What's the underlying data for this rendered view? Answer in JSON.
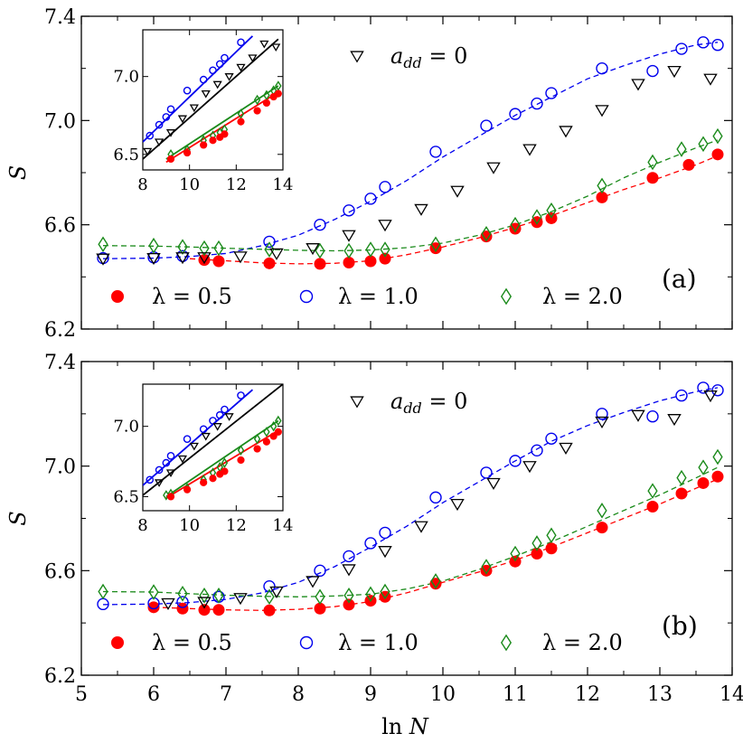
{
  "chart_data": [
    {
      "type": "scatter",
      "panel_label": "(a)",
      "ylabel": "S",
      "xlabel": "",
      "xlim": [
        5,
        14
      ],
      "ylim": [
        6.2,
        7.4
      ],
      "yticks": [
        6.2,
        6.6,
        7.0,
        7.4
      ],
      "ytick_labels": [
        "6.2",
        "6.6",
        "7.0",
        "7.4"
      ],
      "xticks": [
        5,
        6,
        7,
        8,
        9,
        10,
        11,
        12,
        13,
        14
      ],
      "xtick_labels": [
        "5",
        "6",
        "7",
        "8",
        "9",
        "10",
        "11",
        "12",
        "13",
        "14"
      ],
      "annotation": "a_dd = 0",
      "series": [
        {
          "name": "λ = 0.5",
          "marker": "filled-circle",
          "color": "#ff0000",
          "x": [
            6.7,
            6.9,
            7.6,
            8.3,
            8.7,
            9.0,
            9.2,
            9.9,
            10.6,
            11.0,
            11.3,
            11.5,
            12.2,
            12.9,
            13.4,
            13.8
          ],
          "y": [
            6.465,
            6.46,
            6.452,
            6.45,
            6.455,
            6.46,
            6.47,
            6.51,
            6.555,
            6.585,
            6.61,
            6.625,
            6.705,
            6.78,
            6.83,
            6.87
          ],
          "fit_x": [
            6.5,
            7.0,
            7.5,
            8.0,
            8.5,
            9.0,
            9.5,
            10.0,
            10.5,
            11.0,
            11.5,
            12.0,
            12.5,
            13.0,
            13.5,
            13.8
          ],
          "fit_y": [
            6.47,
            6.462,
            6.454,
            6.45,
            6.452,
            6.462,
            6.485,
            6.515,
            6.55,
            6.59,
            6.635,
            6.685,
            6.735,
            6.78,
            6.83,
            6.865
          ]
        },
        {
          "name": "λ = 1.0",
          "marker": "open-circle",
          "color": "#0000ee",
          "x": [
            5.3,
            6.0,
            6.4,
            7.6,
            8.3,
            8.7,
            9.0,
            9.2,
            9.9,
            10.6,
            11.0,
            11.3,
            11.5,
            12.2,
            12.9,
            13.3,
            13.6,
            13.8
          ],
          "y": [
            6.472,
            6.475,
            6.48,
            6.535,
            6.6,
            6.655,
            6.7,
            6.745,
            6.88,
            6.98,
            7.025,
            7.065,
            7.105,
            7.2,
            7.19,
            7.275,
            7.3,
            7.29
          ],
          "fit_x": [
            5.3,
            6.0,
            6.5,
            7.0,
            7.5,
            8.0,
            8.5,
            9.0,
            9.5,
            10.0,
            10.5,
            11.0,
            11.5,
            12.0,
            12.5,
            13.0,
            13.5,
            13.8
          ],
          "fit_y": [
            6.47,
            6.472,
            6.478,
            6.49,
            6.52,
            6.56,
            6.62,
            6.69,
            6.77,
            6.86,
            6.94,
            7.02,
            7.09,
            7.16,
            7.21,
            7.255,
            7.29,
            7.3
          ]
        },
        {
          "name": "λ = 2.0",
          "marker": "open-diamond",
          "color": "#1a8a1a",
          "x": [
            5.3,
            6.0,
            6.4,
            6.7,
            6.9,
            7.6,
            8.3,
            8.7,
            9.0,
            9.2,
            9.9,
            10.6,
            11.0,
            11.3,
            11.5,
            12.2,
            12.9,
            13.3,
            13.6,
            13.8
          ],
          "y": [
            6.525,
            6.52,
            6.515,
            6.51,
            6.51,
            6.505,
            6.5,
            6.5,
            6.505,
            6.505,
            6.525,
            6.565,
            6.6,
            6.63,
            6.655,
            6.75,
            6.84,
            6.89,
            6.91,
            6.94
          ],
          "fit_x": [
            5.3,
            6.0,
            6.5,
            7.0,
            7.5,
            8.0,
            8.5,
            9.0,
            9.5,
            10.0,
            10.5,
            11.0,
            11.5,
            12.0,
            12.5,
            13.0,
            13.5,
            13.8
          ],
          "fit_y": [
            6.52,
            6.518,
            6.515,
            6.51,
            6.506,
            6.502,
            6.5,
            6.503,
            6.512,
            6.53,
            6.56,
            6.6,
            6.65,
            6.71,
            6.78,
            6.84,
            6.895,
            6.925
          ]
        },
        {
          "name": "a_dd = 0",
          "marker": "open-triangle-down",
          "color": "#000000",
          "x": [
            5.3,
            6.0,
            6.4,
            6.7,
            7.2,
            7.7,
            8.2,
            8.7,
            9.2,
            9.7,
            10.2,
            10.7,
            11.2,
            11.7,
            12.2,
            12.7,
            13.2,
            13.7
          ],
          "y": [
            6.47,
            6.472,
            6.475,
            6.475,
            6.478,
            6.49,
            6.51,
            6.56,
            6.6,
            6.66,
            6.73,
            6.82,
            6.89,
            6.96,
            7.04,
            7.14,
            7.19,
            7.16
          ]
        }
      ],
      "inset": {
        "xlim": [
          8,
          14
        ],
        "ylim": [
          6.4,
          7.3
        ],
        "xticks": [
          8,
          10,
          12,
          14
        ],
        "xtick_labels": [
          "8",
          "10",
          "12",
          "14"
        ],
        "yticks": [
          6.5,
          7.0
        ],
        "ytick_labels": [
          "6.5",
          "7.0"
        ],
        "series": [
          {
            "name": "λ = 1.0",
            "marker": "open-circle",
            "color": "#0000ee",
            "x": [
              8.3,
              8.7,
              9.0,
              9.2,
              9.9,
              10.6,
              11.0,
              11.3,
              11.5,
              12.2
            ],
            "y": [
              6.62,
              6.69,
              6.74,
              6.79,
              6.91,
              6.98,
              7.04,
              7.08,
              7.12,
              7.22
            ],
            "line_x": [
              8.0,
              12.7
            ],
            "line_y": [
              6.58,
              7.26
            ]
          },
          {
            "name": "a_dd = 0",
            "marker": "open-triangle-down",
            "color": "#000000",
            "x": [
              8.2,
              8.7,
              9.2,
              9.7,
              10.2,
              10.7,
              11.2,
              11.7,
              12.2,
              12.7,
              13.2,
              13.7
            ],
            "y": [
              6.52,
              6.58,
              6.64,
              6.73,
              6.8,
              6.89,
              6.95,
              7.0,
              7.06,
              7.12,
              7.21,
              7.19
            ],
            "line_x": [
              8.0,
              13.8
            ],
            "line_y": [
              6.47,
              7.24
            ]
          },
          {
            "name": "λ = 2.0",
            "marker": "open-diamond",
            "color": "#1a8a1a",
            "x": [
              9.2,
              9.9,
              10.6,
              11.0,
              11.3,
              11.5,
              12.2,
              12.9,
              13.3,
              13.6,
              13.8
            ],
            "y": [
              6.5,
              6.53,
              6.59,
              6.62,
              6.64,
              6.66,
              6.76,
              6.85,
              6.88,
              6.91,
              6.94
            ],
            "line_x": [
              9.0,
              13.8
            ],
            "line_y": [
              6.47,
              6.94
            ]
          },
          {
            "name": "λ = 0.5",
            "marker": "filled-circle",
            "color": "#ff0000",
            "x": [
              9.2,
              9.9,
              10.6,
              11.0,
              11.3,
              11.5,
              12.2,
              12.9,
              13.3,
              13.6,
              13.8
            ],
            "y": [
              6.47,
              6.51,
              6.56,
              6.59,
              6.61,
              6.63,
              6.71,
              6.78,
              6.83,
              6.87,
              6.89
            ],
            "line_x": [
              9.0,
              13.8
            ],
            "line_y": [
              6.45,
              6.9
            ]
          }
        ]
      }
    },
    {
      "type": "scatter",
      "panel_label": "(b)",
      "ylabel": "S",
      "xlabel": "ln N",
      "xlim": [
        5,
        14
      ],
      "ylim": [
        6.2,
        7.4
      ],
      "yticks": [
        6.2,
        6.6,
        7.0,
        7.4
      ],
      "ytick_labels": [
        "6.2",
        "6.6",
        "7.0",
        "7.4"
      ],
      "xticks": [
        5,
        6,
        7,
        8,
        9,
        10,
        11,
        12,
        13,
        14
      ],
      "xtick_labels": [
        "5",
        "6",
        "7",
        "8",
        "9",
        "10",
        "11",
        "12",
        "13",
        "14"
      ],
      "annotation": "a_dd = 0",
      "series": [
        {
          "name": "λ = 0.5",
          "marker": "filled-circle",
          "color": "#ff0000",
          "x": [
            6.0,
            6.4,
            6.7,
            6.9,
            7.6,
            8.3,
            8.7,
            9.0,
            9.2,
            9.9,
            10.6,
            11.0,
            11.3,
            11.5,
            12.2,
            12.9,
            13.3,
            13.6,
            13.8
          ],
          "y": [
            6.46,
            6.455,
            6.45,
            6.45,
            6.448,
            6.455,
            6.47,
            6.485,
            6.5,
            6.55,
            6.6,
            6.635,
            6.665,
            6.685,
            6.765,
            6.845,
            6.895,
            6.935,
            6.96
          ],
          "fit_x": [
            6.0,
            6.5,
            7.0,
            7.5,
            8.0,
            8.5,
            9.0,
            9.5,
            10.0,
            10.5,
            11.0,
            11.5,
            12.0,
            12.5,
            13.0,
            13.5,
            13.8
          ],
          "fit_y": [
            6.46,
            6.455,
            6.45,
            6.448,
            6.452,
            6.462,
            6.482,
            6.515,
            6.555,
            6.595,
            6.64,
            6.69,
            6.745,
            6.8,
            6.855,
            6.915,
            6.95
          ]
        },
        {
          "name": "λ = 1.0",
          "marker": "open-circle",
          "color": "#0000ee",
          "x": [
            5.3,
            6.0,
            6.4,
            6.9,
            7.6,
            8.3,
            8.7,
            9.0,
            9.2,
            9.9,
            10.6,
            11.0,
            11.3,
            11.5,
            12.2,
            12.9,
            13.3,
            13.6,
            13.8
          ],
          "y": [
            6.472,
            6.475,
            6.48,
            6.5,
            6.54,
            6.6,
            6.655,
            6.705,
            6.745,
            6.88,
            6.975,
            7.02,
            7.06,
            7.105,
            7.2,
            7.19,
            7.27,
            7.3,
            7.29
          ],
          "fit_x": [
            5.3,
            6.0,
            6.5,
            7.0,
            7.5,
            8.0,
            8.5,
            9.0,
            9.5,
            10.0,
            10.5,
            11.0,
            11.5,
            12.0,
            12.5,
            13.0,
            13.5,
            13.8
          ],
          "fit_y": [
            6.47,
            6.472,
            6.478,
            6.49,
            6.515,
            6.555,
            6.615,
            6.69,
            6.77,
            6.86,
            6.94,
            7.02,
            7.095,
            7.155,
            7.205,
            7.25,
            7.285,
            7.3
          ]
        },
        {
          "name": "λ = 2.0",
          "marker": "open-diamond",
          "color": "#1a8a1a",
          "x": [
            5.3,
            6.0,
            6.4,
            6.7,
            6.9,
            7.6,
            8.3,
            8.7,
            9.0,
            9.2,
            9.9,
            10.6,
            11.0,
            11.3,
            11.5,
            12.2,
            12.9,
            13.3,
            13.6,
            13.8
          ],
          "y": [
            6.52,
            6.518,
            6.512,
            6.505,
            6.505,
            6.5,
            6.5,
            6.505,
            6.51,
            6.52,
            6.56,
            6.615,
            6.665,
            6.705,
            6.735,
            6.83,
            6.905,
            6.955,
            6.995,
            7.035
          ],
          "fit_x": [
            5.3,
            6.0,
            6.5,
            7.0,
            7.5,
            8.0,
            8.5,
            9.0,
            9.5,
            10.0,
            10.5,
            11.0,
            11.5,
            12.0,
            12.5,
            13.0,
            13.5,
            13.8
          ],
          "fit_y": [
            6.52,
            6.518,
            6.512,
            6.506,
            6.502,
            6.5,
            6.503,
            6.51,
            6.53,
            6.56,
            6.605,
            6.655,
            6.71,
            6.77,
            6.83,
            6.89,
            6.955,
            6.995
          ]
        },
        {
          "name": "a_dd = 0",
          "marker": "open-triangle-down",
          "color": "#000000",
          "x": [
            6.2,
            6.7,
            7.2,
            7.7,
            8.2,
            8.7,
            9.2,
            9.7,
            10.2,
            10.7,
            11.2,
            11.7,
            12.2,
            12.7,
            13.2,
            13.7
          ],
          "y": [
            6.475,
            6.48,
            6.495,
            6.52,
            6.56,
            6.605,
            6.675,
            6.77,
            6.855,
            6.935,
            7.0,
            7.07,
            7.17,
            7.195,
            7.18,
            7.27
          ]
        }
      ],
      "inset": {
        "xlim": [
          8,
          14
        ],
        "ylim": [
          6.4,
          7.3
        ],
        "xticks": [
          8,
          10,
          12,
          14
        ],
        "xtick_labels": [
          "8",
          "10",
          "12",
          "14"
        ],
        "yticks": [
          6.5,
          7.0
        ],
        "ytick_labels": [
          "6.5",
          "7.0"
        ],
        "series": [
          {
            "name": "λ = 1.0",
            "marker": "open-circle",
            "color": "#0000ee",
            "x": [
              8.3,
              8.7,
              9.0,
              9.2,
              9.9,
              10.6,
              11.0,
              11.3,
              11.5,
              12.2
            ],
            "y": [
              6.62,
              6.69,
              6.74,
              6.79,
              6.91,
              6.98,
              7.04,
              7.08,
              7.12,
              7.22
            ],
            "line_x": [
              8.0,
              12.7
            ],
            "line_y": [
              6.58,
              7.26
            ]
          },
          {
            "name": "a_dd = 0",
            "marker": "open-triangle-down",
            "color": "#000000",
            "x": [
              8.7,
              9.2,
              9.7,
              10.2,
              10.7,
              11.2,
              11.7
            ],
            "y": [
              6.6,
              6.67,
              6.77,
              6.86,
              6.93,
              7.0,
              7.07
            ],
            "line_x": [
              8.0,
              14.0
            ],
            "line_y": [
              6.51,
              7.3
            ]
          },
          {
            "name": "λ = 2.0",
            "marker": "open-diamond",
            "color": "#1a8a1a",
            "x": [
              9.0,
              9.2,
              9.9,
              10.6,
              11.0,
              11.3,
              11.5,
              12.2,
              12.9,
              13.3,
              13.6,
              13.8
            ],
            "y": [
              6.51,
              6.52,
              6.56,
              6.62,
              6.67,
              6.71,
              6.74,
              6.83,
              6.91,
              6.96,
              7.0,
              7.04
            ],
            "line_x": [
              9.0,
              13.8
            ],
            "line_y": [
              6.5,
              7.04
            ]
          },
          {
            "name": "λ = 0.5",
            "marker": "filled-circle",
            "color": "#ff0000",
            "x": [
              9.2,
              9.9,
              10.6,
              11.0,
              11.3,
              11.5,
              12.2,
              12.9,
              13.3,
              13.6,
              13.8
            ],
            "y": [
              6.5,
              6.55,
              6.6,
              6.63,
              6.66,
              6.68,
              6.76,
              6.84,
              6.89,
              6.93,
              6.96
            ],
            "line_x": [
              9.0,
              13.8
            ],
            "line_y": [
              6.49,
              6.97
            ]
          }
        ]
      }
    }
  ],
  "legend": {
    "lambda_05": "λ = 0.5",
    "lambda_10": "λ = 1.0",
    "lambda_20": "λ = 2.0",
    "add_prefix": "a",
    "add_sub": "dd",
    "add_suffix": " = 0"
  },
  "colors": {
    "red": "#ff0000",
    "blue": "#0000ee",
    "green": "#1a8a1a",
    "black": "#000000"
  }
}
